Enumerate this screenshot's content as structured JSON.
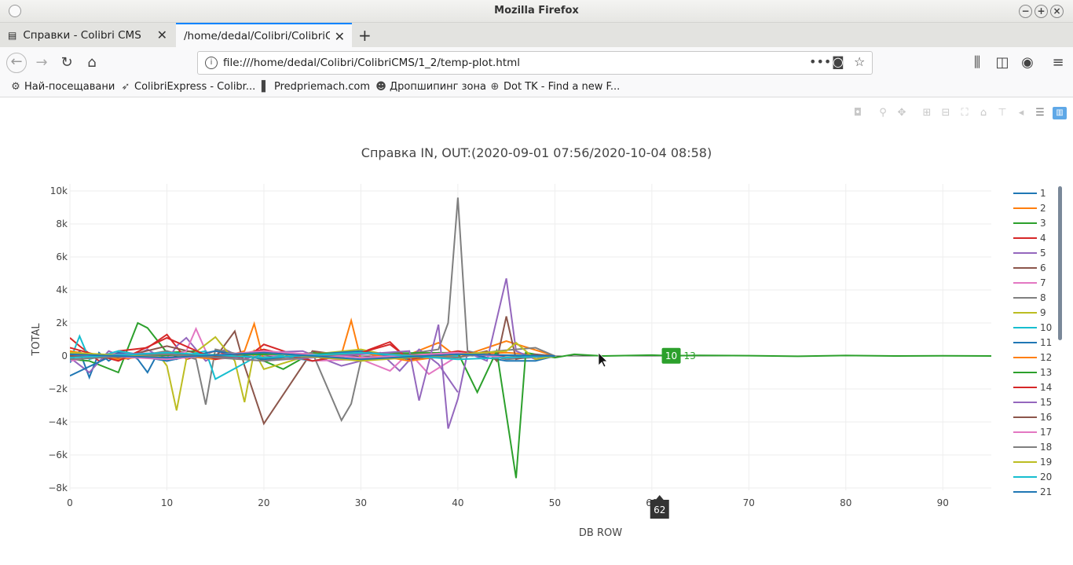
{
  "window": {
    "title": "Mozilla Firefox"
  },
  "tabs": [
    {
      "label": "Справки - Colibri CMS",
      "active": false
    },
    {
      "label": "/home/dedal/Colibri/ColibriCMS",
      "active": true
    }
  ],
  "url": "file:///home/dedal/Colibri/ColibriCMS/1_2/temp-plot.html",
  "bookmarks": [
    {
      "label": "Най-посещавани",
      "icon": "gear-icon"
    },
    {
      "label": "ColibriExpress - Colibr...",
      "icon": "bird-icon"
    },
    {
      "label": "Predpriemach.com",
      "icon": "bars-icon"
    },
    {
      "label": "Дропшипинг зона",
      "icon": "face-icon"
    },
    {
      "label": "Dot TK - Find a new F...",
      "icon": "globe-icon"
    }
  ],
  "chart_data": {
    "type": "line",
    "title": "Справка IN, OUT:(2020-09-01  07:56/2020-10-04  08:58)",
    "xlabel": "DB ROW",
    "ylabel": "TOTAL",
    "xlim": [
      0,
      95
    ],
    "ylim": [
      -8000,
      10000
    ],
    "xticks": [
      "0",
      "10",
      "20",
      "30",
      "40",
      "50",
      "60",
      "70",
      "80",
      "90"
    ],
    "yticks": [
      "10k",
      "8k",
      "6k",
      "4k",
      "2k",
      "0",
      "−2k",
      "−4k",
      "−6k",
      "−8k"
    ],
    "grid": true,
    "legend_position": "right",
    "hover": {
      "x_label": "62",
      "point_value": "10",
      "series_label": "13"
    },
    "series": [
      {
        "name": "1",
        "color": "#1f77b4",
        "x": [
          0,
          1,
          2,
          3,
          4,
          5,
          6,
          7,
          8,
          9,
          10,
          11,
          12,
          13,
          14,
          15
        ],
        "values": [
          -400,
          300,
          -1300,
          200,
          -300,
          100,
          200,
          -200,
          -1000,
          100,
          300,
          -200,
          150,
          -100,
          50,
          0
        ]
      },
      {
        "name": "2",
        "color": "#ff7f0e",
        "x": [
          0,
          5,
          10,
          15,
          18,
          19,
          20,
          25,
          28,
          29,
          30,
          35,
          38,
          40,
          45,
          50
        ],
        "values": [
          100,
          -100,
          200,
          -200,
          300,
          1950,
          -300,
          200,
          100,
          2150,
          -200,
          100,
          800,
          -100,
          900,
          0
        ]
      },
      {
        "name": "3",
        "color": "#2ca02c",
        "x": [
          0,
          2,
          5,
          7,
          8,
          10,
          13,
          15,
          18,
          20,
          22,
          25,
          30,
          35,
          40
        ],
        "values": [
          -200,
          -300,
          -1000,
          2000,
          1700,
          200,
          300,
          -200,
          200,
          -300,
          -800,
          200,
          -300,
          100,
          0
        ]
      },
      {
        "name": "4",
        "color": "#d62728",
        "x": [
          0,
          1,
          3,
          5,
          8,
          10,
          12,
          15,
          18,
          20,
          25,
          30,
          33,
          35,
          38,
          40
        ],
        "values": [
          1100,
          600,
          -300,
          300,
          500,
          1300,
          -200,
          300,
          -200,
          700,
          -300,
          200,
          850,
          -300,
          200,
          0
        ]
      },
      {
        "name": "5",
        "color": "#9467bd",
        "x": [
          0,
          2,
          4,
          6,
          8,
          10,
          11,
          12,
          14,
          16,
          18,
          20,
          24,
          28,
          30,
          32,
          34,
          36,
          38,
          40
        ],
        "values": [
          -100,
          -1000,
          300,
          -200,
          400,
          -300,
          600,
          1100,
          -300,
          400,
          -200,
          200,
          300,
          -600,
          -300,
          200,
          -900,
          400,
          -500,
          -2200
        ]
      },
      {
        "name": "6",
        "color": "#8c564b",
        "x": [
          0,
          5,
          10,
          15,
          17,
          18,
          20,
          25,
          30,
          35,
          40
        ],
        "values": [
          200,
          -100,
          600,
          -100,
          1500,
          -600,
          -4100,
          300,
          -100,
          100,
          0
        ]
      },
      {
        "name": "7",
        "color": "#e377c2",
        "x": [
          0,
          5,
          10,
          12,
          13,
          14,
          15,
          20,
          25,
          30,
          33,
          35,
          37,
          40
        ],
        "values": [
          -300,
          200,
          -100,
          300,
          1650,
          300,
          -200,
          100,
          -300,
          -200,
          -900,
          200,
          -1100,
          0
        ]
      },
      {
        "name": "8",
        "color": "#7f7f7f",
        "x": [
          0,
          5,
          10,
          13,
          14,
          15,
          20,
          25,
          28,
          29,
          30,
          38,
          39,
          40,
          41,
          45,
          50
        ],
        "values": [
          200,
          -200,
          300,
          -200,
          -2950,
          400,
          -200,
          200,
          -3900,
          -2900,
          -300,
          400,
          2000,
          9600,
          300,
          -200,
          0
        ]
      },
      {
        "name": "9",
        "color": "#bcbd22",
        "x": [
          0,
          5,
          9,
          10,
          11,
          12,
          15,
          17,
          18,
          19,
          20,
          25,
          30,
          35,
          40
        ],
        "values": [
          300,
          -200,
          200,
          -600,
          -3300,
          -200,
          1150,
          -300,
          -2800,
          300,
          -800,
          100,
          400,
          -200,
          0
        ]
      },
      {
        "name": "10",
        "color": "#17becf",
        "x": [
          0,
          1,
          2,
          5,
          10,
          14,
          15,
          20,
          25,
          30,
          35,
          40
        ],
        "values": [
          -300,
          1200,
          -200,
          300,
          -200,
          300,
          -1400,
          200,
          -300,
          200,
          -100,
          0
        ]
      },
      {
        "name": "11",
        "color": "#1f77b4",
        "x": [
          0,
          5,
          10,
          15,
          20,
          25,
          30,
          35,
          40,
          45,
          48,
          50
        ],
        "values": [
          -1200,
          200,
          -300,
          300,
          -200,
          100,
          300,
          -200,
          200,
          -300,
          -300,
          0
        ]
      },
      {
        "name": "12",
        "color": "#ff7f0e",
        "x": [
          0,
          5,
          10,
          15,
          20,
          25,
          30,
          35,
          40,
          45,
          50
        ],
        "values": [
          300,
          -200,
          100,
          -200,
          300,
          -100,
          200,
          -300,
          100,
          200,
          0
        ]
      },
      {
        "name": "13",
        "color": "#2ca02c",
        "x": [
          0,
          40,
          42,
          44,
          46,
          47,
          50,
          52,
          55,
          60,
          62,
          65,
          70,
          75,
          80,
          85,
          90,
          95
        ],
        "values": [
          0,
          200,
          -2200,
          300,
          -7400,
          200,
          -100,
          100,
          0,
          50,
          10,
          40,
          20,
          -20,
          30,
          0,
          10,
          0
        ]
      },
      {
        "name": "14",
        "color": "#d62728",
        "x": [
          0,
          5,
          10,
          15,
          20,
          25,
          30,
          33,
          35,
          40,
          45,
          50
        ],
        "values": [
          500,
          -300,
          1100,
          -200,
          400,
          -300,
          200,
          700,
          -200,
          300,
          -100,
          0
        ]
      },
      {
        "name": "15",
        "color": "#9467bd",
        "x": [
          0,
          10,
          20,
          30,
          35,
          36,
          38,
          39,
          40,
          41,
          43,
          45,
          46,
          48,
          50
        ],
        "values": [
          0,
          200,
          -300,
          100,
          300,
          -2700,
          1900,
          -4400,
          -2600,
          200,
          -300,
          4700,
          300,
          -200,
          0
        ]
      },
      {
        "name": "16",
        "color": "#8c564b",
        "x": [
          0,
          10,
          20,
          30,
          40,
          43,
          44,
          45,
          46,
          48,
          50
        ],
        "values": [
          0,
          100,
          -100,
          200,
          -100,
          300,
          -300,
          2400,
          -200,
          100,
          0
        ]
      },
      {
        "name": "17",
        "color": "#e377c2",
        "x": [
          0,
          10,
          20,
          30,
          40,
          45,
          50
        ],
        "values": [
          100,
          -200,
          300,
          -100,
          200,
          -100,
          0
        ]
      },
      {
        "name": "18",
        "color": "#7f7f7f",
        "x": [
          0,
          10,
          20,
          30,
          40,
          44,
          48,
          50
        ],
        "values": [
          -200,
          100,
          -300,
          200,
          -100,
          300,
          500,
          0
        ]
      },
      {
        "name": "19",
        "color": "#bcbd22",
        "x": [
          0,
          10,
          20,
          30,
          40,
          45,
          46,
          48,
          50
        ],
        "values": [
          200,
          -100,
          200,
          -300,
          100,
          300,
          800,
          -200,
          0
        ]
      },
      {
        "name": "20",
        "color": "#17becf",
        "x": [
          0,
          10,
          20,
          30,
          40,
          50
        ],
        "values": [
          -100,
          200,
          -100,
          200,
          -200,
          0
        ]
      },
      {
        "name": "21",
        "color": "#1f77b4",
        "x": [
          0,
          10,
          20,
          30,
          40,
          50
        ],
        "values": [
          100,
          -100,
          200,
          -200,
          100,
          0
        ]
      }
    ]
  }
}
